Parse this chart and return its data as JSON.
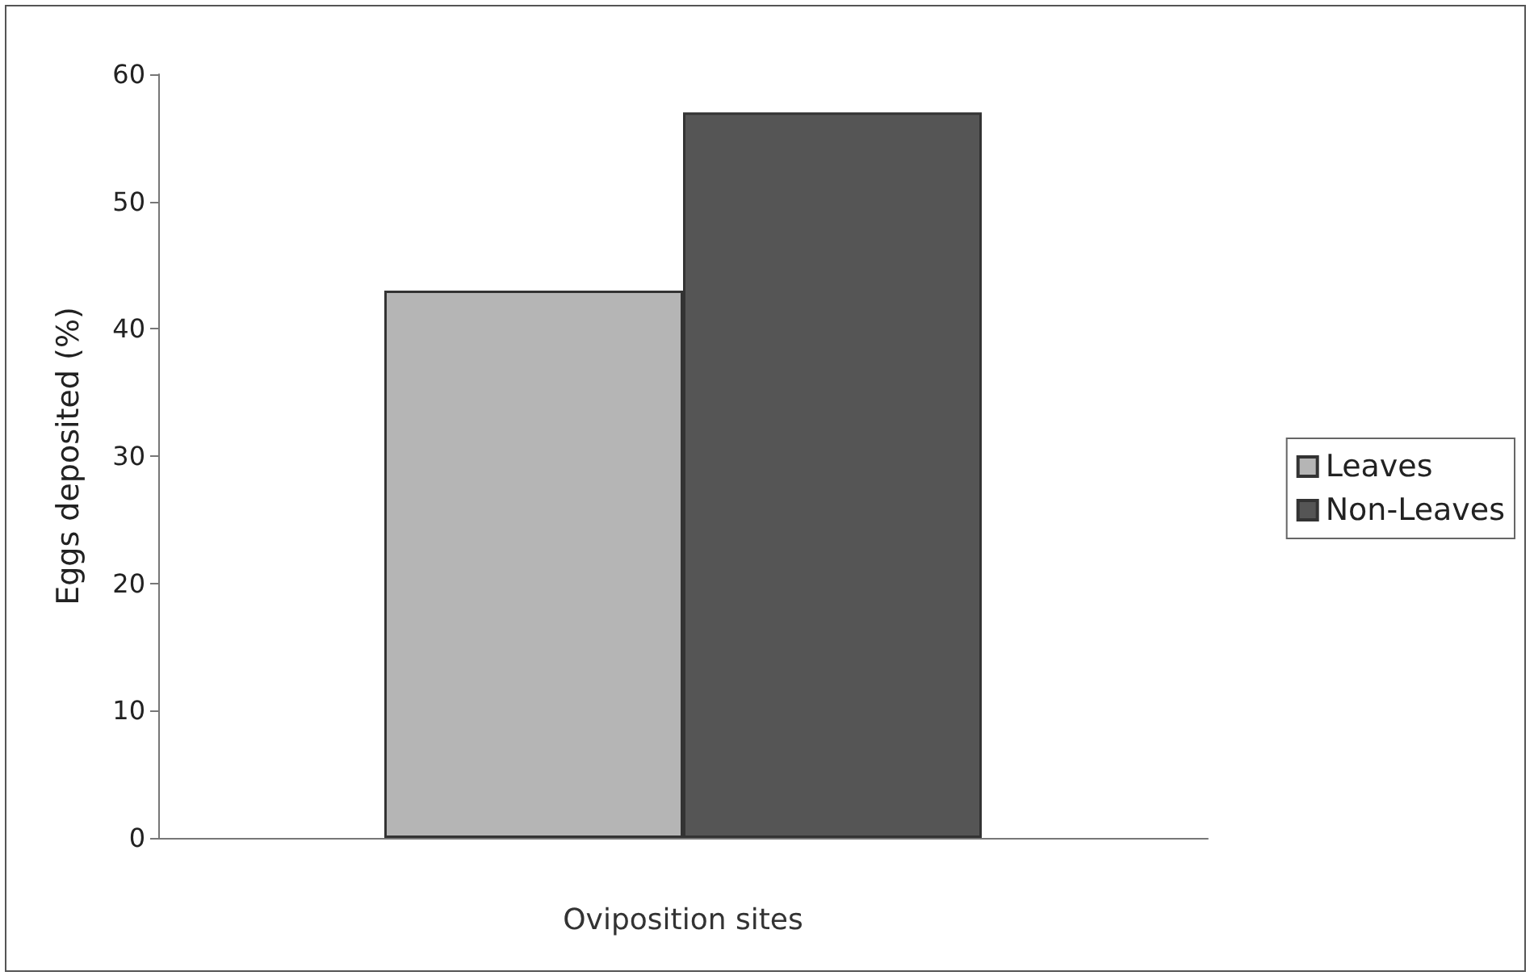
{
  "chart_data": {
    "type": "bar",
    "xlabel": "Oviposition sites",
    "ylabel": "Eggs deposited (%)",
    "categories": [
      null
    ],
    "series": [
      {
        "name": "Leaves",
        "color": "#b5b5b5",
        "values": [
          43
        ]
      },
      {
        "name": "Non-Leaves",
        "color": "#555555",
        "values": [
          57
        ]
      }
    ],
    "ylim": [
      0,
      60
    ],
    "yticks": [
      0,
      10,
      20,
      30,
      40,
      50,
      60
    ],
    "grid": false,
    "legend": "right"
  }
}
